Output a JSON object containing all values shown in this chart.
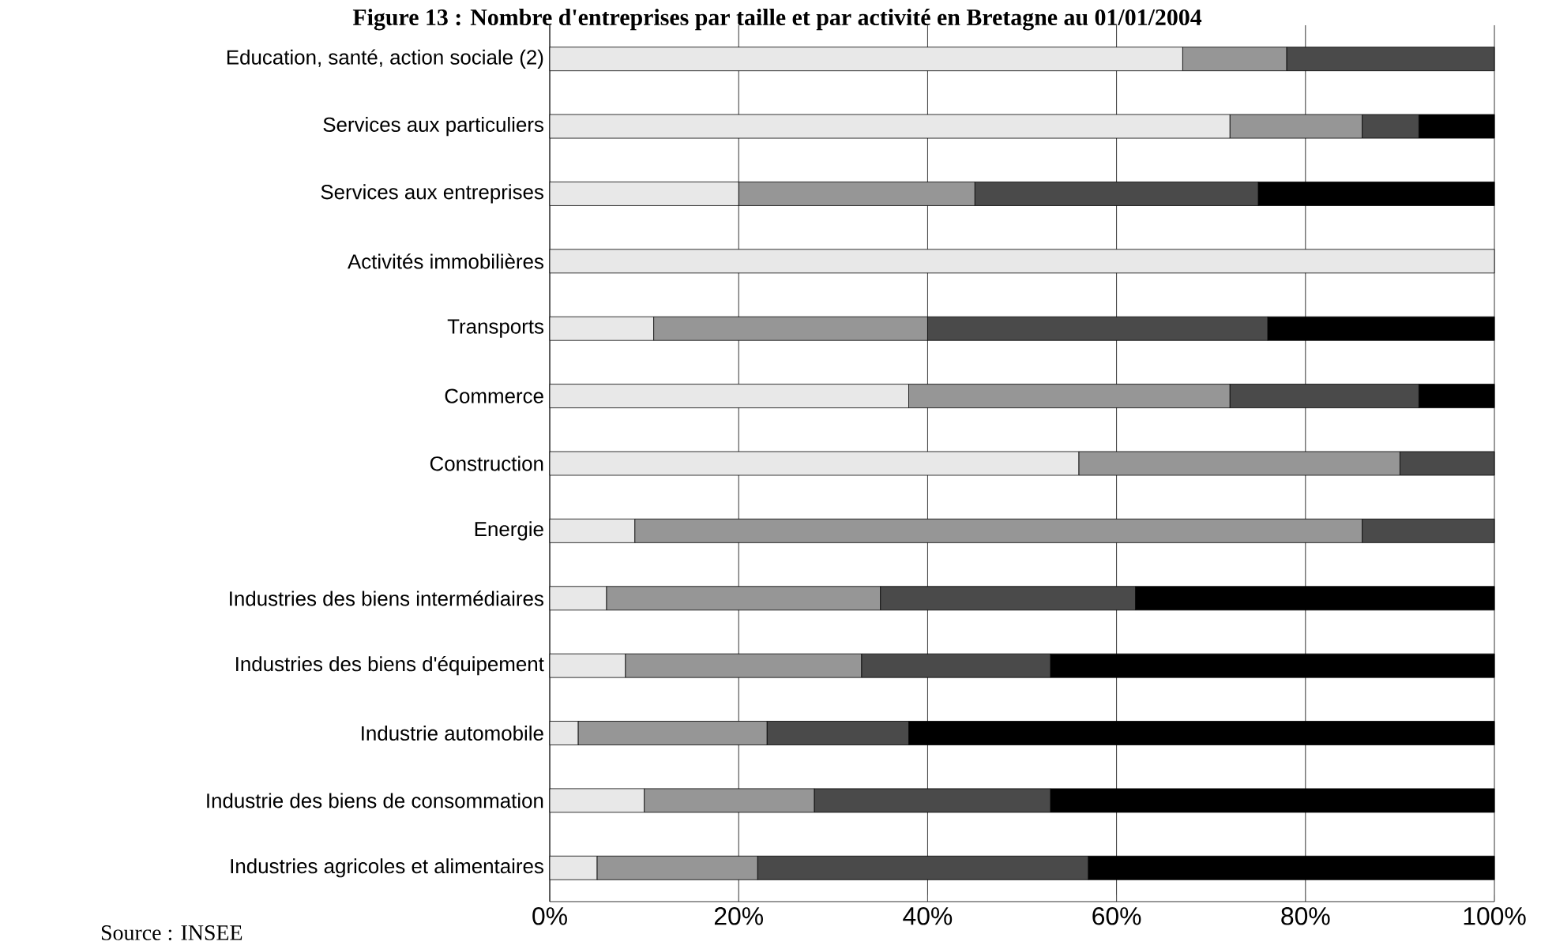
{
  "chart_data": {
    "type": "bar",
    "orientation": "horizontal",
    "stacked": true,
    "title": "Figure 13 : Nombre d'entreprises par taille et par activité en Bretagne au 01/01/2004",
    "categories": [
      "Education, santé, action sociale (2)",
      "Services aux particuliers",
      "Services aux entreprises",
      "Activités immobilières",
      "Transports",
      "Commerce",
      "Construction",
      "Energie",
      "Industries des biens intermédiaires",
      "Industries des biens d'équipement",
      "Industrie automobile",
      "Industrie des biens de consommation",
      "Industries agricoles et alimentaires"
    ],
    "series": [
      {
        "color": "#e8e8e8",
        "values": [
          67,
          72,
          20,
          100,
          11,
          38,
          56,
          9,
          6,
          8,
          3,
          10,
          5
        ]
      },
      {
        "color": "#969696",
        "values": [
          11,
          14,
          25,
          0,
          29,
          34,
          34,
          77,
          29,
          25,
          20,
          18,
          17
        ]
      },
      {
        "color": "#4a4a4a",
        "values": [
          22,
          6,
          30,
          0,
          36,
          20,
          10,
          14,
          27,
          20,
          15,
          25,
          35
        ]
      },
      {
        "color": "#000000",
        "values": [
          0,
          8,
          25,
          0,
          24,
          8,
          0,
          0,
          38,
          47,
          62,
          47,
          43
        ]
      }
    ],
    "xlim": [
      0,
      100
    ],
    "xticks": [
      {
        "value": 0,
        "label": "0%"
      },
      {
        "value": 20,
        "label": "20%"
      },
      {
        "value": 40,
        "label": "40%"
      },
      {
        "value": 60,
        "label": "60%"
      },
      {
        "value": 80,
        "label": "80%"
      },
      {
        "value": 100,
        "label": "100%"
      }
    ],
    "grid": "x",
    "annotations": [
      "Source : INSEE"
    ]
  }
}
